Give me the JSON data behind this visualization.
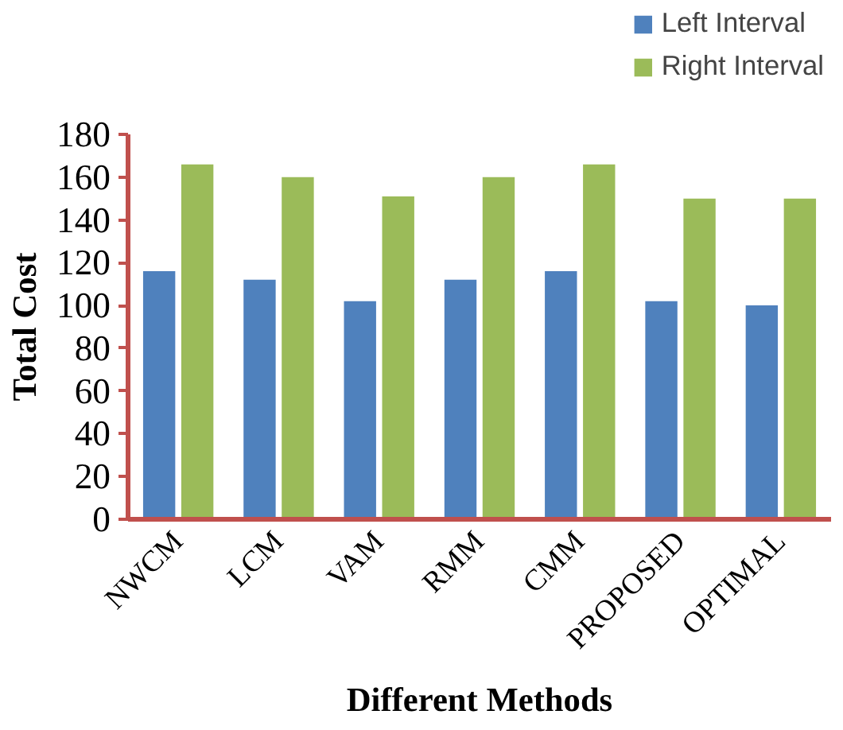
{
  "chart_data": {
    "type": "bar",
    "xlabel": "Different Methods",
    "ylabel": "Total Cost",
    "categories": [
      "NWCM",
      "LCM",
      "VAM",
      "RMM",
      "CMM",
      "PROPOSED",
      "OPTIMAL"
    ],
    "series": [
      {
        "name": "Left Interval",
        "color": "#4f81bd",
        "values": [
          116,
          112,
          102,
          112,
          116,
          102,
          100
        ]
      },
      {
        "name": "Right Interval",
        "color": "#9bbb59",
        "values": [
          166,
          160,
          151,
          160,
          166,
          150,
          150
        ]
      }
    ],
    "ylim": [
      0,
      180
    ],
    "yticks": [
      0,
      20,
      40,
      60,
      80,
      100,
      120,
      140,
      160,
      180
    ],
    "grid": false,
    "legend": "top right"
  }
}
